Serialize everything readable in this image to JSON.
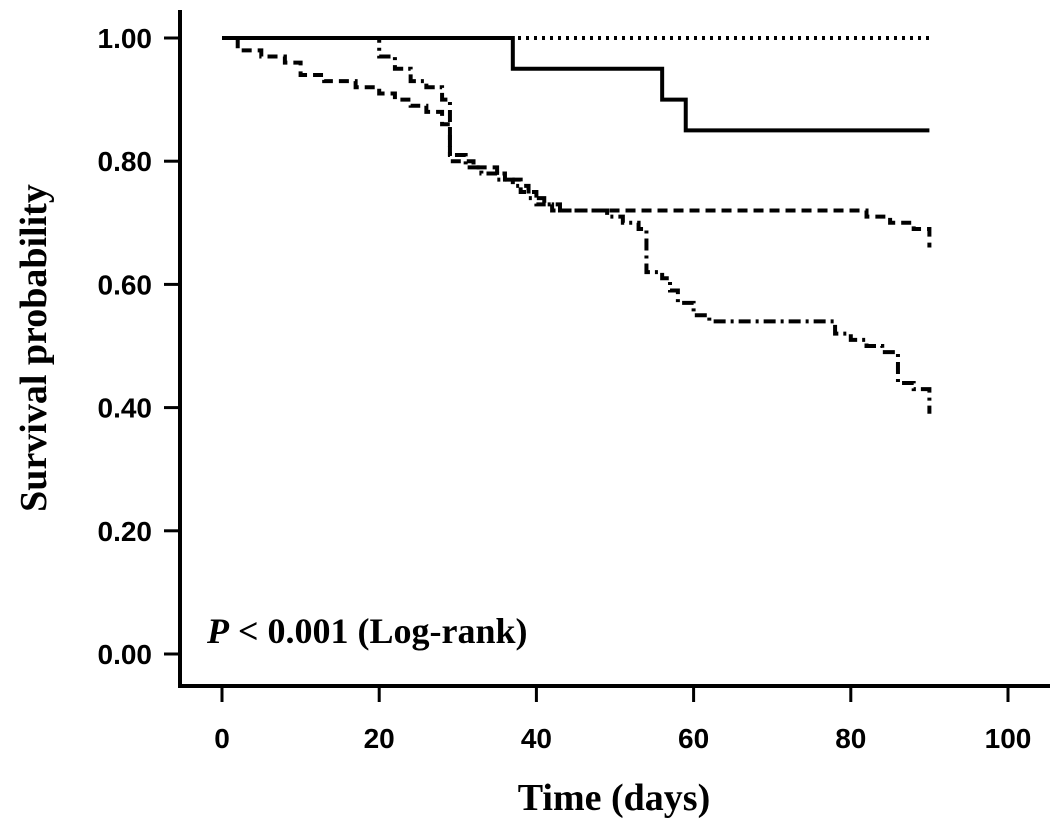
{
  "chart_data": {
    "type": "line",
    "subtype": "kaplan-meier step curves",
    "xlabel": "Time (days)",
    "ylabel": "Survival probability",
    "xlim": [
      0,
      100
    ],
    "ylim": [
      0,
      1
    ],
    "x_ticks": [
      "0",
      "20",
      "40",
      "60",
      "80",
      "100"
    ],
    "y_ticks": [
      "0.00",
      "0.20",
      "0.40",
      "0.60",
      "0.80",
      "1.00"
    ],
    "grid": false,
    "annotation": {
      "p_symbol": "P",
      "rest": " < 0.001 (Log-rank)"
    },
    "series": [
      {
        "style": "dotted",
        "points": [
          [
            0,
            1.0
          ],
          [
            90,
            1.0
          ]
        ]
      },
      {
        "style": "solid",
        "points": [
          [
            0,
            1.0
          ],
          [
            37,
            1.0
          ],
          [
            37,
            0.95
          ],
          [
            56,
            0.95
          ],
          [
            56,
            0.9
          ],
          [
            59,
            0.9
          ],
          [
            59,
            0.85
          ],
          [
            90,
            0.85
          ]
        ]
      },
      {
        "style": "dashed",
        "points": [
          [
            0,
            1.0
          ],
          [
            2,
            0.98
          ],
          [
            5,
            0.97
          ],
          [
            8,
            0.96
          ],
          [
            10,
            0.94
          ],
          [
            13,
            0.93
          ],
          [
            17,
            0.92
          ],
          [
            20,
            0.91
          ],
          [
            22,
            0.9
          ],
          [
            24,
            0.89
          ],
          [
            26,
            0.88
          ],
          [
            28,
            0.86
          ],
          [
            29,
            0.8
          ],
          [
            32,
            0.79
          ],
          [
            35,
            0.78
          ],
          [
            36,
            0.77
          ],
          [
            38,
            0.75
          ],
          [
            40,
            0.73
          ],
          [
            42,
            0.72
          ],
          [
            50,
            0.72
          ],
          [
            60,
            0.72
          ],
          [
            70,
            0.72
          ],
          [
            80,
            0.72
          ],
          [
            82,
            0.71
          ],
          [
            85,
            0.7
          ],
          [
            88,
            0.69
          ],
          [
            90,
            0.66
          ]
        ]
      },
      {
        "style": "dash-dot",
        "points": [
          [
            0,
            1.0
          ],
          [
            18,
            1.0
          ],
          [
            20,
            0.97
          ],
          [
            22,
            0.95
          ],
          [
            24,
            0.93
          ],
          [
            26,
            0.92
          ],
          [
            28,
            0.9
          ],
          [
            29,
            0.81
          ],
          [
            31,
            0.79
          ],
          [
            33,
            0.78
          ],
          [
            35,
            0.77
          ],
          [
            37,
            0.76
          ],
          [
            39,
            0.74
          ],
          [
            41,
            0.73
          ],
          [
            43,
            0.72
          ],
          [
            47,
            0.72
          ],
          [
            49,
            0.71
          ],
          [
            51,
            0.7
          ],
          [
            53,
            0.69
          ],
          [
            54,
            0.62
          ],
          [
            56,
            0.61
          ],
          [
            57,
            0.59
          ],
          [
            58,
            0.57
          ],
          [
            60,
            0.55
          ],
          [
            62,
            0.54
          ],
          [
            70,
            0.54
          ],
          [
            77,
            0.54
          ],
          [
            78,
            0.52
          ],
          [
            80,
            0.51
          ],
          [
            82,
            0.5
          ],
          [
            84,
            0.49
          ],
          [
            86,
            0.44
          ],
          [
            88,
            0.43
          ],
          [
            90,
            0.39
          ]
        ]
      }
    ]
  }
}
